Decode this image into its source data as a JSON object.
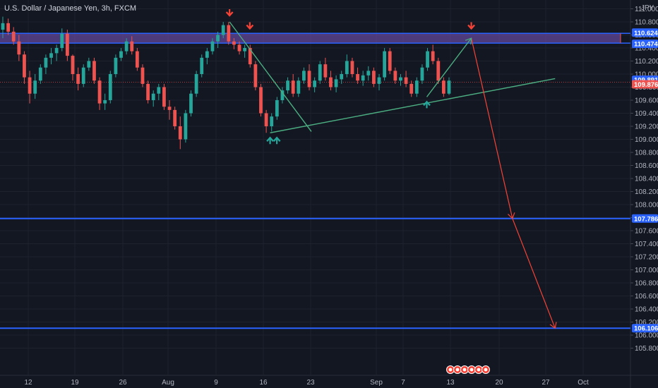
{
  "chart_data": {
    "type": "candlestick",
    "title": "U.S. Dollar / Japanese Yen, 3h, FXCM",
    "currency": "JPY",
    "ylim": [
      105.6,
      111.2
    ],
    "y_ticks": [
      "111.000",
      "110.800",
      "110.600",
      "110.400",
      "110.200",
      "110.000",
      "109.800",
      "109.600",
      "109.400",
      "109.200",
      "109.000",
      "108.800",
      "108.600",
      "108.400",
      "108.200",
      "108.000",
      "107.800",
      "107.600",
      "107.400",
      "107.200",
      "107.000",
      "106.800",
      "106.600",
      "106.400",
      "106.200",
      "106.000",
      "105.800"
    ],
    "x_ticks": [
      "12",
      "19",
      "26",
      "Aug",
      "9",
      "16",
      "23",
      "Sep",
      "7",
      "13",
      "20",
      "27",
      "Oct"
    ],
    "colors": {
      "up": "#26a69a",
      "down": "#ef5350",
      "zone_fill": "#7e57c2",
      "zone_line": "#2962ff",
      "level": "#2962ff",
      "triangle": "#4caf82",
      "projection_up": "#4caf82",
      "projection_down": "#f44336",
      "arrow_down": "#f44336",
      "arrow_up": "#26a69a",
      "current_price_bg": "#ef5350"
    },
    "price_tags": [
      {
        "value": "110.624",
        "price": 110.624,
        "kind": "level"
      },
      {
        "value": "110.474",
        "price": 110.474,
        "kind": "level"
      },
      {
        "value": "109.891",
        "price": 109.891,
        "kind": "level"
      },
      {
        "value": "109.876",
        "price": 109.876,
        "kind": "current"
      },
      {
        "value": "107.786",
        "price": 107.786,
        "kind": "level"
      },
      {
        "value": "106.106",
        "price": 106.106,
        "kind": "level"
      }
    ],
    "resistance_zone": {
      "top": 110.624,
      "bottom": 110.474
    },
    "horizontal_levels": [
      107.786,
      106.106
    ],
    "session_icons_count": 6,
    "candles": [
      [
        110.68,
        110.88,
        110.55,
        110.78
      ],
      [
        110.78,
        110.85,
        110.6,
        110.65
      ],
      [
        110.65,
        110.72,
        110.45,
        110.5
      ],
      [
        110.5,
        110.6,
        110.2,
        110.3
      ],
      [
        110.3,
        110.35,
        109.85,
        109.95
      ],
      [
        109.95,
        110.05,
        109.55,
        109.7
      ],
      [
        109.7,
        110.0,
        109.62,
        109.9
      ],
      [
        109.9,
        110.15,
        109.85,
        110.1
      ],
      [
        110.1,
        110.3,
        110.0,
        110.25
      ],
      [
        110.25,
        110.4,
        110.15,
        110.32
      ],
      [
        110.32,
        110.45,
        110.2,
        110.4
      ],
      [
        110.4,
        110.7,
        110.35,
        110.62
      ],
      [
        110.62,
        110.68,
        110.2,
        110.28
      ],
      [
        110.28,
        110.3,
        109.9,
        110.0
      ],
      [
        110.0,
        110.1,
        109.75,
        109.85
      ],
      [
        109.85,
        110.15,
        109.8,
        110.1
      ],
      [
        110.1,
        110.25,
        110.05,
        110.2
      ],
      [
        110.2,
        110.25,
        109.85,
        109.9
      ],
      [
        109.9,
        109.95,
        109.45,
        109.55
      ],
      [
        109.55,
        109.7,
        109.45,
        109.6
      ],
      [
        109.6,
        110.05,
        109.55,
        110.0
      ],
      [
        110.0,
        110.3,
        109.95,
        110.25
      ],
      [
        110.25,
        110.4,
        110.2,
        110.35
      ],
      [
        110.35,
        110.55,
        110.3,
        110.5
      ],
      [
        110.5,
        110.58,
        110.3,
        110.35
      ],
      [
        110.35,
        110.4,
        110.05,
        110.1
      ],
      [
        110.1,
        110.15,
        109.8,
        109.85
      ],
      [
        109.85,
        109.9,
        109.55,
        109.6
      ],
      [
        109.6,
        109.75,
        109.5,
        109.7
      ],
      [
        109.7,
        109.85,
        109.6,
        109.8
      ],
      [
        109.8,
        109.85,
        109.45,
        109.5
      ],
      [
        109.5,
        109.6,
        109.3,
        109.45
      ],
      [
        109.45,
        109.5,
        109.15,
        109.2
      ],
      [
        109.2,
        109.35,
        108.85,
        109.0
      ],
      [
        109.0,
        109.45,
        108.95,
        109.4
      ],
      [
        109.4,
        109.75,
        109.35,
        109.7
      ],
      [
        109.7,
        110.05,
        109.65,
        110.0
      ],
      [
        110.0,
        110.3,
        109.95,
        110.25
      ],
      [
        110.25,
        110.4,
        110.15,
        110.35
      ],
      [
        110.35,
        110.55,
        110.3,
        110.5
      ],
      [
        110.5,
        110.65,
        110.4,
        110.6
      ],
      [
        110.6,
        110.8,
        110.55,
        110.75
      ],
      [
        110.75,
        110.8,
        110.45,
        110.5
      ],
      [
        110.5,
        110.55,
        110.38,
        110.45
      ],
      [
        110.45,
        110.5,
        110.3,
        110.35
      ],
      [
        110.35,
        110.45,
        110.25,
        110.4
      ],
      [
        110.4,
        110.45,
        110.1,
        110.15
      ],
      [
        110.15,
        110.2,
        109.75,
        109.8
      ],
      [
        109.8,
        109.85,
        109.35,
        109.4
      ],
      [
        109.4,
        109.45,
        109.1,
        109.2
      ],
      [
        109.2,
        109.4,
        109.12,
        109.35
      ],
      [
        109.35,
        109.65,
        109.3,
        109.6
      ],
      [
        109.6,
        109.8,
        109.55,
        109.75
      ],
      [
        109.75,
        109.95,
        109.7,
        109.9
      ],
      [
        109.9,
        110.0,
        109.65,
        109.7
      ],
      [
        109.7,
        109.95,
        109.65,
        109.9
      ],
      [
        109.9,
        110.1,
        109.85,
        110.05
      ],
      [
        110.05,
        110.15,
        109.75,
        109.8
      ],
      [
        109.8,
        109.95,
        109.72,
        109.9
      ],
      [
        109.9,
        110.2,
        109.85,
        110.15
      ],
      [
        110.15,
        110.25,
        109.9,
        109.95
      ],
      [
        109.95,
        110.05,
        109.75,
        109.8
      ],
      [
        109.8,
        109.98,
        109.72,
        109.92
      ],
      [
        109.92,
        110.05,
        109.85,
        110.0
      ],
      [
        110.0,
        110.3,
        109.95,
        110.2
      ],
      [
        110.2,
        110.25,
        109.95,
        110.0
      ],
      [
        110.0,
        110.1,
        109.85,
        109.9
      ],
      [
        109.9,
        110.05,
        109.82,
        109.98
      ],
      [
        109.98,
        110.12,
        109.9,
        110.05
      ],
      [
        110.05,
        110.1,
        109.8,
        109.85
      ],
      [
        109.85,
        110.0,
        109.75,
        109.95
      ],
      [
        109.95,
        110.4,
        109.9,
        110.35
      ],
      [
        110.35,
        110.4,
        110.0,
        110.05
      ],
      [
        110.05,
        110.1,
        109.85,
        109.9
      ],
      [
        109.9,
        110.0,
        109.82,
        109.95
      ],
      [
        109.95,
        110.05,
        109.8,
        109.85
      ],
      [
        109.85,
        109.9,
        109.65,
        109.7
      ],
      [
        109.7,
        109.95,
        109.65,
        109.9
      ],
      [
        109.9,
        110.15,
        109.85,
        110.1
      ],
      [
        110.1,
        110.4,
        110.05,
        110.35
      ],
      [
        110.35,
        110.45,
        110.15,
        110.2
      ],
      [
        110.2,
        110.25,
        109.85,
        109.9
      ],
      [
        109.9,
        109.95,
        109.65,
        109.7
      ],
      [
        109.7,
        109.95,
        109.68,
        109.9
      ]
    ],
    "annotations": {
      "triangle_points": [
        {
          "date": "Aug 11",
          "price": 110.8
        },
        {
          "date": "Aug 19",
          "price": 109.1
        },
        {
          "date": "Aug 17",
          "price": 109.1
        },
        {
          "date": "Sep 28",
          "price": 109.93
        }
      ],
      "projection": [
        {
          "date": "Sep 10",
          "price": 109.65
        },
        {
          "date": "Sep 16",
          "price": 110.55
        },
        {
          "date": "Sep 22",
          "price": 107.786
        },
        {
          "date": "Sep 28",
          "price": 106.106
        }
      ],
      "arrows_down": [
        {
          "date": "Aug 11",
          "price": 110.8
        },
        {
          "date": "Aug 14",
          "price": 110.6
        },
        {
          "date": "Sep 16",
          "price": 110.6
        }
      ],
      "arrows_up": [
        {
          "date": "Aug 17",
          "price": 109.1
        },
        {
          "date": "Aug 18",
          "price": 109.1
        },
        {
          "date": "Sep 10",
          "price": 109.65
        }
      ]
    }
  }
}
